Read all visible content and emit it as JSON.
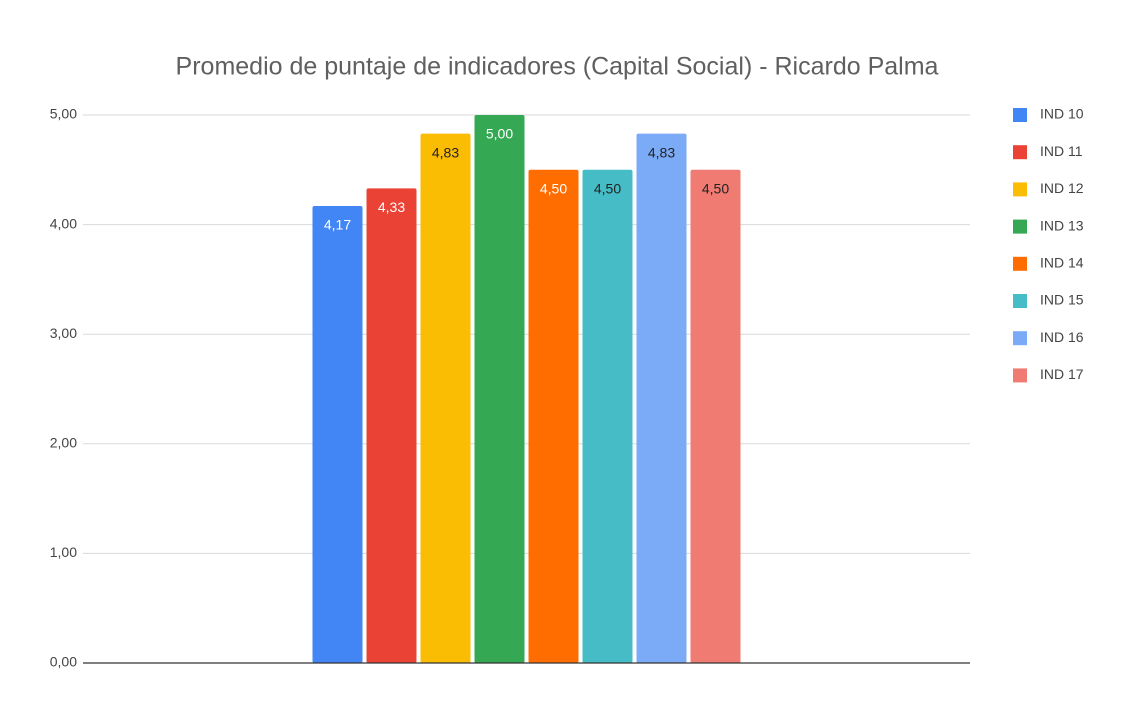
{
  "chart_data": {
    "type": "bar",
    "title": "Promedio de puntaje de indicadores (Capital Social) - Ricardo Palma",
    "categories": [
      null
    ],
    "series": [
      {
        "name": "IND 10",
        "color": "#4285f4",
        "values": [
          4.17
        ],
        "value_labels": [
          "4,17"
        ]
      },
      {
        "name": "IND 11",
        "color": "#ea4335",
        "values": [
          4.33
        ],
        "value_labels": [
          "4,33"
        ]
      },
      {
        "name": "IND 12",
        "color": "#fbbc04",
        "values": [
          4.83
        ],
        "value_labels": [
          "4,83"
        ]
      },
      {
        "name": "IND 13",
        "color": "#34a853",
        "values": [
          5.0
        ],
        "value_labels": [
          "5,00"
        ]
      },
      {
        "name": "IND 14",
        "color": "#ff6d01",
        "values": [
          4.5
        ],
        "value_labels": [
          "4,50"
        ]
      },
      {
        "name": "IND 15",
        "color": "#46bdc6",
        "values": [
          4.5
        ],
        "value_labels": [
          "4,50"
        ]
      },
      {
        "name": "IND 16",
        "color": "#7baaf7",
        "values": [
          4.83
        ],
        "value_labels": [
          "4,83"
        ]
      },
      {
        "name": "IND 17",
        "color": "#f07b72",
        "values": [
          4.5
        ],
        "value_labels": [
          "4,50"
        ]
      }
    ],
    "ylim": [
      0,
      5
    ],
    "yticks": [
      {
        "value": 0,
        "label": "0,00"
      },
      {
        "value": 1,
        "label": "1,00"
      },
      {
        "value": 2,
        "label": "2,00"
      },
      {
        "value": 3,
        "label": "3,00"
      },
      {
        "value": 4,
        "label": "4,00"
      },
      {
        "value": 5,
        "label": "5,00"
      }
    ],
    "grid": true,
    "legend": "right"
  }
}
